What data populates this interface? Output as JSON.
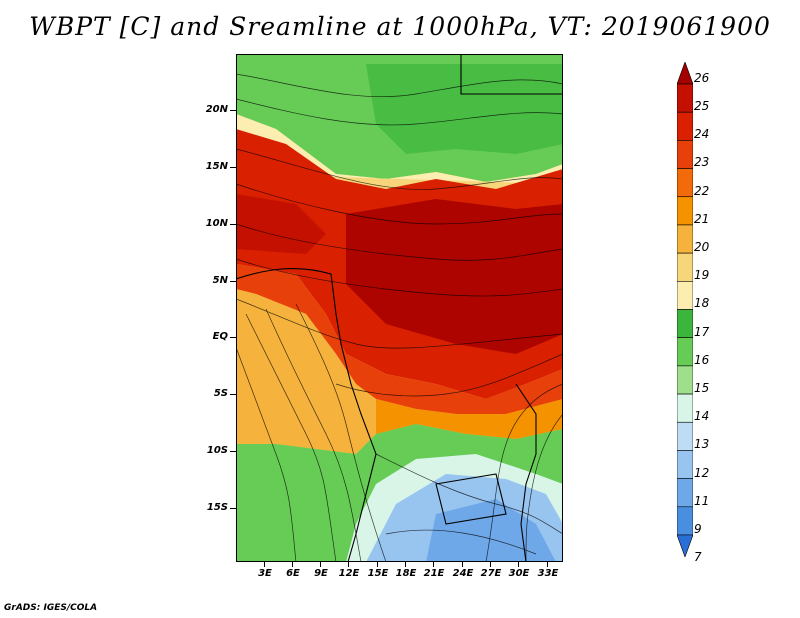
{
  "title": "WBPT [C] and Sreamline at 1000hPa, VT: 2019061900",
  "footer": "GrADS: IGES/COLA",
  "lat_labels": [
    "20N",
    "15N",
    "10N",
    "5N",
    "EQ",
    "5S",
    "10S",
    "15S"
  ],
  "lon_labels": [
    "3E",
    "6E",
    "9E",
    "12E",
    "15E",
    "18E",
    "21E",
    "24E",
    "27E",
    "30E",
    "33E"
  ],
  "colorbar": {
    "labels": [
      "26",
      "25",
      "24",
      "23",
      "22",
      "21",
      "20",
      "19",
      "18",
      "17",
      "16",
      "15",
      "14",
      "13",
      "12",
      "11",
      "9",
      "7"
    ],
    "colors": [
      "#a50000",
      "#c41000",
      "#d92000",
      "#e8400a",
      "#f26a0a",
      "#f59200",
      "#f5b23c",
      "#f7d57a",
      "#fbeeb0",
      "#3cb53c",
      "#66cc55",
      "#9fde8a",
      "#d8f5e8",
      "#bfdcf5",
      "#98c4f0",
      "#6fa8e8",
      "#4a8ee0",
      "#2a6fd8"
    ]
  },
  "colors": {
    "hot": "#c41a00",
    "warm": "#f59200",
    "mild": "#f7d57a",
    "green": "#5cc24a",
    "cool": "#98c4f0"
  }
}
